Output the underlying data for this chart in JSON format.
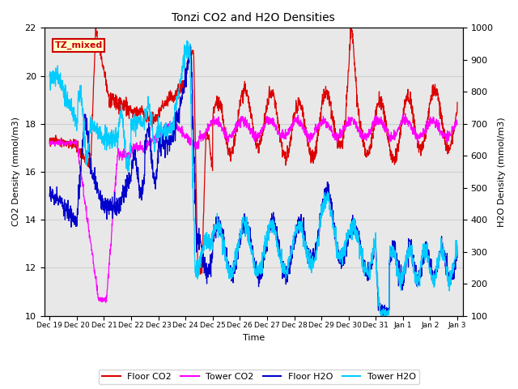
{
  "title": "Tonzi CO2 and H2O Densities",
  "xlabel": "Time",
  "ylabel_left": "CO2 Density (mmol/m3)",
  "ylabel_right": "H2O Density (mmol/m3)",
  "ylim_left": [
    10,
    22
  ],
  "ylim_right": [
    100,
    1000
  ],
  "annotation_text": "TZ_mixed",
  "annotation_color": "#cc0000",
  "annotation_bg": "#ffffcc",
  "colors": {
    "floor_co2": "#dd0000",
    "tower_co2": "#ff00ff",
    "floor_h2o": "#0000cc",
    "tower_h2o": "#00ccff"
  },
  "legend_labels": [
    "Floor CO2",
    "Tower CO2",
    "Floor H2O",
    "Tower H2O"
  ],
  "grid_color": "#d0d0d0",
  "bg_color": "#e8e8e8",
  "tick_labels": [
    "Dec 19",
    "Dec 20",
    "Dec 21",
    "Dec 22",
    "Dec 23",
    "Dec 24",
    "Dec 25",
    "Dec 26",
    "Dec 27",
    "Dec 28",
    "Dec 29",
    "Dec 30",
    "Dec 31",
    "Jan 1",
    "Jan 2",
    "Jan 3"
  ],
  "yticks_left": [
    10,
    12,
    14,
    16,
    18,
    20,
    22
  ],
  "yticks_right": [
    100,
    200,
    300,
    400,
    500,
    600,
    700,
    800,
    900,
    1000
  ]
}
